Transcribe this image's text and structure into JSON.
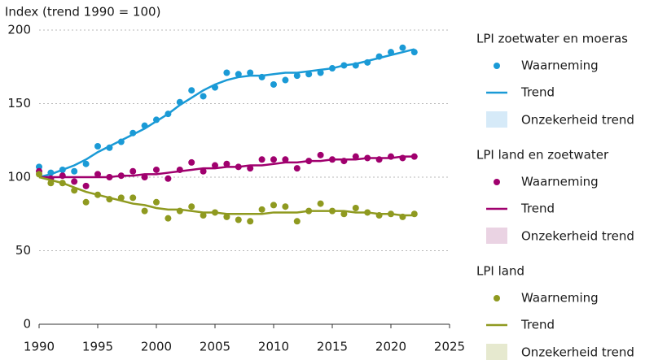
{
  "chart_data": {
    "type": "scatter",
    "y_label": "Index (trend 1990 = 100)",
    "x": [
      1990,
      1991,
      1992,
      1993,
      1994,
      1995,
      1996,
      1997,
      1998,
      1999,
      2000,
      2001,
      2002,
      2003,
      2004,
      2005,
      2006,
      2007,
      2008,
      2009,
      2010,
      2011,
      2012,
      2013,
      2014,
      2015,
      2016,
      2017,
      2018,
      2019,
      2020,
      2021,
      2022
    ],
    "xlim": [
      1990,
      2025
    ],
    "xticks": [
      1990,
      1995,
      2000,
      2005,
      2010,
      2015,
      2020,
      2025
    ],
    "ylim": [
      0,
      200
    ],
    "yticks": [
      0,
      50,
      100,
      150,
      200
    ],
    "grid": true,
    "groups": [
      {
        "name": "LPI zoetwater en moeras",
        "observed": {
          "name": "Waarneming",
          "color": "#1a9ad6",
          "values": [
            107,
            103,
            105,
            104,
            109,
            121,
            120,
            124,
            130,
            135,
            139,
            143,
            151,
            159,
            155,
            161,
            171,
            170,
            171,
            168,
            163,
            166,
            169,
            170,
            171,
            174,
            176,
            176,
            178,
            182,
            185,
            188,
            185
          ]
        },
        "trend": {
          "name": "Trend",
          "color": "#1a9ad6",
          "values": [
            100,
            102,
            105,
            108,
            112,
            117,
            121,
            125,
            129,
            133,
            138,
            143,
            149,
            154,
            159,
            163,
            166,
            168,
            169,
            169,
            170,
            171,
            171,
            172,
            173,
            174,
            176,
            177,
            179,
            181,
            183,
            185,
            187
          ]
        },
        "uncertainty": {
          "name": "Onzekerheid trend",
          "color": "#d6eaf8"
        }
      },
      {
        "name": "LPI land en zoetwater",
        "observed": {
          "name": "Waarneming",
          "color": "#a0006e",
          "values": [
            104,
            99,
            101,
            97,
            94,
            102,
            100,
            101,
            104,
            100,
            105,
            99,
            105,
            110,
            104,
            108,
            109,
            107,
            106,
            112,
            112,
            112,
            106,
            111,
            115,
            112,
            111,
            114,
            113,
            112,
            114,
            113,
            114
          ]
        },
        "trend": {
          "name": "Trend",
          "color": "#a0006e",
          "values": [
            100,
            100,
            100,
            100,
            100,
            100,
            100,
            101,
            101,
            102,
            102,
            103,
            104,
            105,
            106,
            106,
            107,
            107,
            108,
            108,
            109,
            110,
            110,
            111,
            111,
            112,
            112,
            112,
            113,
            113,
            113,
            114,
            114
          ]
        },
        "uncertainty": {
          "name": "Onzekerheid trend",
          "color": "#ead3e3"
        }
      },
      {
        "name": "LPI land",
        "observed": {
          "name": "Waarneming",
          "color": "#8f9a20",
          "values": [
            102,
            96,
            96,
            91,
            83,
            88,
            85,
            86,
            86,
            77,
            83,
            72,
            77,
            80,
            74,
            76,
            73,
            71,
            70,
            78,
            81,
            80,
            70,
            77,
            82,
            77,
            75,
            79,
            76,
            74,
            75,
            73,
            75
          ]
        },
        "trend": {
          "name": "Trend",
          "color": "#8f9a20",
          "values": [
            100,
            98,
            96,
            93,
            90,
            88,
            86,
            84,
            82,
            81,
            79,
            78,
            78,
            77,
            76,
            76,
            75,
            75,
            75,
            75,
            76,
            76,
            76,
            77,
            77,
            77,
            77,
            76,
            76,
            75,
            75,
            74,
            74
          ]
        },
        "uncertainty": {
          "name": "Onzekerheid trend",
          "color": "#e6e9cf"
        }
      }
    ]
  }
}
